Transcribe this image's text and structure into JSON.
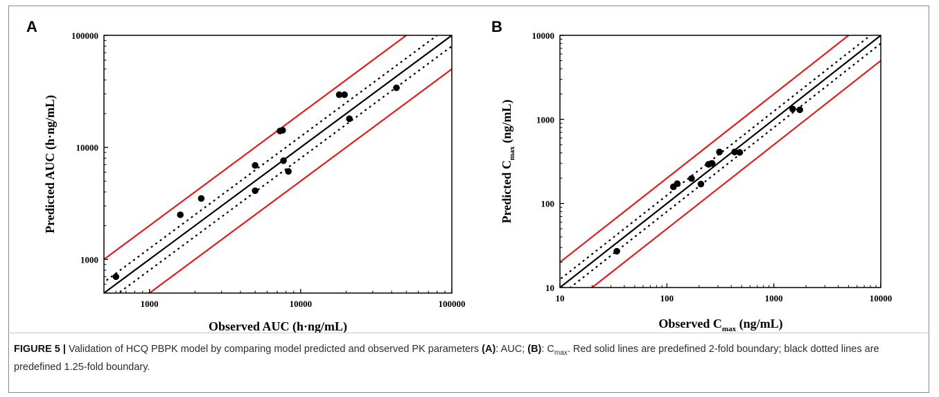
{
  "figure": {
    "caption_label": "FIGURE 5 |",
    "caption_text_1": " Validation of HCQ PBPK model by comparing model predicted and observed PK parameters ",
    "caption_panel_a": "(A)",
    "caption_text_2": ": AUC; ",
    "caption_panel_b": "(B)",
    "caption_text_3": ": C",
    "caption_sub": "max",
    "caption_text_4": ". Red solid lines are predefined 2-fold boundary; black dotted lines are predefined 1.25-fold boundary."
  },
  "colors": {
    "fold2": "#e21b1b",
    "identity": "#000000",
    "fold125": "#000000",
    "points": "#000000"
  },
  "chart_data": [
    {
      "type": "scatter",
      "panel_label": "A",
      "xlabel": "Observed AUC (h·ng/mL)",
      "ylabel": "Predicted AUC (h·ng/mL)",
      "xscale": "log",
      "yscale": "log",
      "xlim": [
        500,
        100000
      ],
      "ylim": [
        500,
        100000
      ],
      "xticks": [
        1000,
        10000,
        100000
      ],
      "xtick_labels": [
        "1000",
        "10000",
        "100000"
      ],
      "yticks": [
        1000,
        10000,
        100000
      ],
      "ytick_labels": [
        "1000",
        "10000",
        "100000"
      ],
      "grid": false,
      "reference_lines": [
        {
          "kind": "identity",
          "fold": 1,
          "style": "solid",
          "color": "black"
        },
        {
          "kind": "upper",
          "fold": 1.25,
          "style": "dotted",
          "color": "black"
        },
        {
          "kind": "lower",
          "fold": 0.8,
          "style": "dotted",
          "color": "black"
        },
        {
          "kind": "upper",
          "fold": 2,
          "style": "solid",
          "color": "red"
        },
        {
          "kind": "lower",
          "fold": 0.5,
          "style": "solid",
          "color": "red"
        }
      ],
      "points": [
        {
          "x": 600,
          "y": 700
        },
        {
          "x": 1600,
          "y": 2500
        },
        {
          "x": 2200,
          "y": 3500
        },
        {
          "x": 5000,
          "y": 6900
        },
        {
          "x": 5000,
          "y": 4100
        },
        {
          "x": 7300,
          "y": 14000
        },
        {
          "x": 7600,
          "y": 14200
        },
        {
          "x": 7700,
          "y": 7600
        },
        {
          "x": 8300,
          "y": 6100
        },
        {
          "x": 18000,
          "y": 29500
        },
        {
          "x": 19500,
          "y": 29500
        },
        {
          "x": 21000,
          "y": 18000
        },
        {
          "x": 43000,
          "y": 34000
        }
      ]
    },
    {
      "type": "scatter",
      "panel_label": "B",
      "xlabel_main": "Observed C",
      "xlabel_sub": "max",
      "xlabel_unit": " (ng/mL)",
      "ylabel_main": "Predicted C",
      "ylabel_sub": "max",
      "ylabel_unit": " (ng/mL)",
      "xscale": "log",
      "yscale": "log",
      "xlim": [
        10,
        10000
      ],
      "ylim": [
        10,
        10000
      ],
      "xticks": [
        10,
        100,
        1000,
        10000
      ],
      "xtick_labels": [
        "10",
        "100",
        "1000",
        "10000"
      ],
      "yticks": [
        10,
        100,
        1000,
        10000
      ],
      "ytick_labels": [
        "10",
        "100",
        "1000",
        "10000"
      ],
      "grid": false,
      "reference_lines": [
        {
          "kind": "identity",
          "fold": 1,
          "style": "solid",
          "color": "black"
        },
        {
          "kind": "upper",
          "fold": 1.25,
          "style": "dotted",
          "color": "black"
        },
        {
          "kind": "lower",
          "fold": 0.8,
          "style": "dotted",
          "color": "black"
        },
        {
          "kind": "upper",
          "fold": 2,
          "style": "solid",
          "color": "red"
        },
        {
          "kind": "lower",
          "fold": 0.5,
          "style": "solid",
          "color": "red"
        }
      ],
      "points": [
        {
          "x": 34,
          "y": 27
        },
        {
          "x": 115,
          "y": 158
        },
        {
          "x": 125,
          "y": 172
        },
        {
          "x": 170,
          "y": 198
        },
        {
          "x": 208,
          "y": 170
        },
        {
          "x": 245,
          "y": 292
        },
        {
          "x": 265,
          "y": 300
        },
        {
          "x": 310,
          "y": 410
        },
        {
          "x": 430,
          "y": 410
        },
        {
          "x": 480,
          "y": 405
        },
        {
          "x": 1500,
          "y": 1330
        },
        {
          "x": 1750,
          "y": 1300
        }
      ]
    }
  ]
}
